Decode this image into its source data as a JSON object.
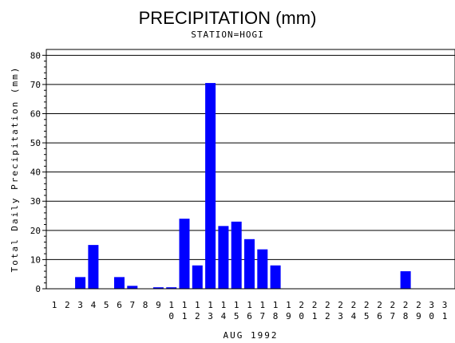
{
  "chart_data": {
    "type": "bar",
    "title": "PRECIPITATION (mm)",
    "subtitle": "STATION=HOGI",
    "xlabel": "AUG 1992",
    "ylabel": "Total Daily Precipitation (mm)",
    "ylim": [
      0,
      82
    ],
    "yticks": [
      0,
      10,
      20,
      30,
      40,
      50,
      60,
      70,
      80
    ],
    "grid": true,
    "colors": {
      "bar": "#0000ff",
      "grid": "#000000"
    },
    "categories": [
      "1",
      "2",
      "3",
      "4",
      "5",
      "6",
      "7",
      "8",
      "9",
      "10",
      "11",
      "12",
      "13",
      "14",
      "15",
      "16",
      "17",
      "18",
      "19",
      "20",
      "21",
      "22",
      "23",
      "24",
      "25",
      "26",
      "27",
      "28",
      "29",
      "30",
      "31"
    ],
    "values": [
      0,
      0,
      4,
      15,
      0,
      4,
      1,
      0,
      0.5,
      0.5,
      24,
      8,
      70.5,
      21.5,
      23,
      17,
      13.5,
      8,
      0,
      0,
      0,
      0,
      0,
      0,
      0,
      0,
      0,
      6,
      0,
      0,
      0
    ]
  }
}
